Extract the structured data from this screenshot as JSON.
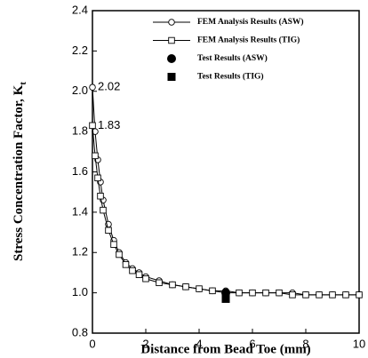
{
  "chart_data": {
    "type": "line",
    "xlabel": "Distance from Bead Toe (mm)",
    "ylabel": {
      "text": "Stress Concentration Factor, K",
      "subscript": "t"
    },
    "xlim": [
      0,
      10
    ],
    "ylim": [
      0.8,
      2.4
    ],
    "xticks": [
      0,
      2,
      4,
      6,
      8,
      10
    ],
    "yticks": [
      0.8,
      {
        "value": 1.0,
        "label": "1.0"
      },
      1.2,
      1.4,
      1.6,
      1.8,
      {
        "value": 2.0,
        "label": "2.0"
      },
      2.2,
      2.4
    ],
    "legend": "upper right",
    "annotations": [
      "2.02",
      "1.83"
    ],
    "series": [
      {
        "name": "FEM Analysis Results (ASW)",
        "color": "#000000",
        "marker": "circle",
        "line": true,
        "x": [
          0,
          0.1,
          0.2,
          0.3,
          0.4,
          0.6,
          0.8,
          1.0,
          1.25,
          1.5,
          1.75,
          2,
          2.5,
          3,
          3.5,
          4,
          4.5,
          5,
          5.5,
          6,
          6.5,
          7,
          7.5,
          8,
          8.5,
          9,
          9.5,
          10
        ],
        "values": [
          2.02,
          1.8,
          1.66,
          1.55,
          1.46,
          1.34,
          1.26,
          1.2,
          1.15,
          1.12,
          1.1,
          1.08,
          1.06,
          1.04,
          1.03,
          1.02,
          1.01,
          1.01,
          1.0,
          1.0,
          1.0,
          1.0,
          1.0,
          0.99,
          0.99,
          0.99,
          0.99,
          0.99
        ]
      },
      {
        "name": "FEM Analysis Results (TIG)",
        "color": "#000000",
        "marker": "square",
        "line": true,
        "x": [
          0,
          0.1,
          0.2,
          0.3,
          0.4,
          0.6,
          0.8,
          1.0,
          1.25,
          1.5,
          1.75,
          2,
          2.5,
          3,
          3.5,
          4,
          4.5,
          5,
          5.5,
          6,
          6.5,
          7,
          7.5,
          8,
          8.5,
          9,
          9.5,
          10
        ],
        "values": [
          1.83,
          1.68,
          1.57,
          1.48,
          1.41,
          1.31,
          1.24,
          1.19,
          1.14,
          1.11,
          1.09,
          1.07,
          1.05,
          1.04,
          1.03,
          1.02,
          1.01,
          1.0,
          1.0,
          1.0,
          1.0,
          1.0,
          0.99,
          0.99,
          0.99,
          0.99,
          0.99,
          0.99
        ]
      },
      {
        "name": "Test Results (ASW)",
        "color": "#000000",
        "marker": "filled-circle",
        "line": false,
        "x": [
          5
        ],
        "values": [
          1.0
        ]
      },
      {
        "name": "Test Results (TIG)",
        "color": "#000000",
        "marker": "filled-square",
        "line": false,
        "x": [
          5
        ],
        "values": [
          0.97
        ]
      }
    ]
  }
}
